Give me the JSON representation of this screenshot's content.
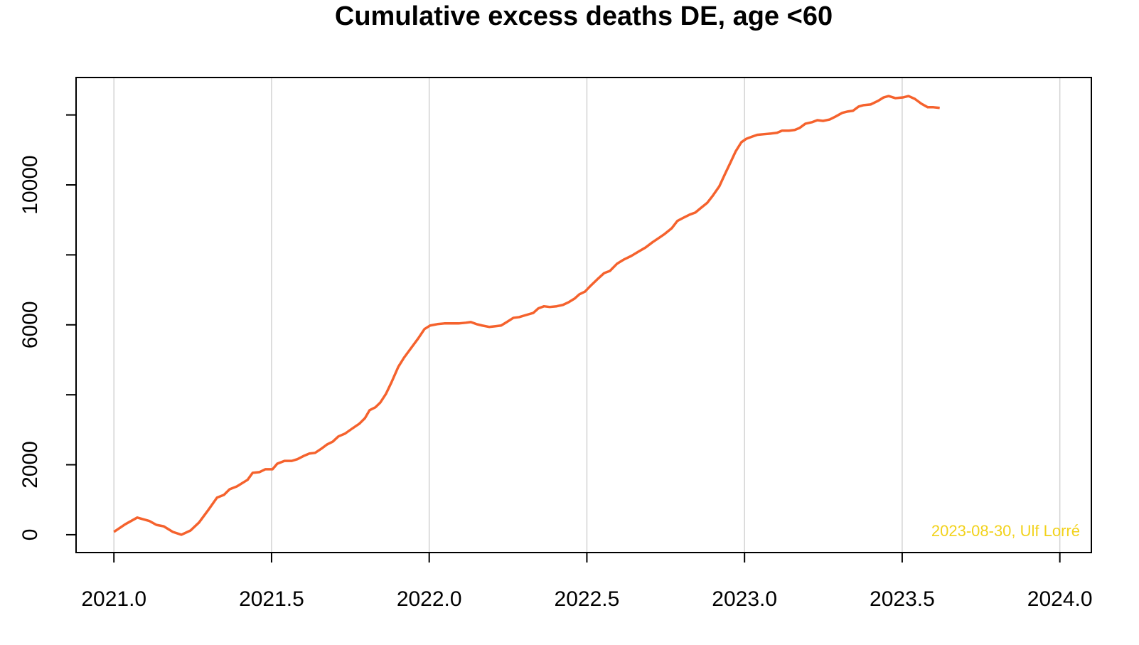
{
  "chart_data": {
    "type": "line",
    "title": "Cumulative excess deaths DE, age <60",
    "annotation": "2023-08-30, Ulf Lorré",
    "annotation_color": "#f2d21b",
    "xlim": [
      2020.88,
      2024.1
    ],
    "xticks": [
      {
        "value": 2021,
        "label": "2021.0"
      },
      {
        "value": 2021.5,
        "label": "2021.5"
      },
      {
        "value": 2022,
        "label": "2022.0"
      },
      {
        "value": 2022.5,
        "label": "2022.5"
      },
      {
        "value": 2023,
        "label": "2023.0"
      },
      {
        "value": 2023.5,
        "label": "2023.5"
      },
      {
        "value": 2024,
        "label": "2024.0"
      }
    ],
    "ylim": [
      -510,
      13070
    ],
    "yticks": [
      0,
      2000,
      4000,
      6000,
      8000,
      10000,
      12000
    ],
    "grid": "x",
    "series": [
      {
        "color": "#f5622d",
        "x": [
          2021.0,
          2021.036,
          2021.074,
          2021.113,
          2021.135,
          2021.158,
          2021.187,
          2021.214,
          2021.243,
          2021.27,
          2021.298,
          2021.327,
          2021.349,
          2021.367,
          2021.39,
          2021.424,
          2021.44,
          2021.462,
          2021.48,
          2021.503,
          2021.518,
          2021.541,
          2021.564,
          2021.582,
          2021.604,
          2021.62,
          2021.638,
          2021.658,
          2021.676,
          2021.694,
          2021.712,
          2021.733,
          2021.755,
          2021.778,
          2021.796,
          2021.811,
          2021.829,
          2021.845,
          2021.863,
          2021.881,
          2021.902,
          2021.92,
          2021.942,
          2021.965,
          2021.985,
          2022.003,
          2022.026,
          2022.048,
          2022.071,
          2022.093,
          2022.116,
          2022.132,
          2022.15,
          2022.168,
          2022.19,
          2022.21,
          2022.228,
          2022.246,
          2022.267,
          2022.285,
          2022.307,
          2022.33,
          2022.346,
          2022.364,
          2022.382,
          2022.404,
          2022.424,
          2022.443,
          2022.461,
          2022.476,
          2022.494,
          2022.51,
          2022.533,
          2022.555,
          2022.573,
          2022.596,
          2022.618,
          2022.641,
          2022.663,
          2022.686,
          2022.708,
          2022.731,
          2022.747,
          2022.769,
          2022.787,
          2022.808,
          2022.826,
          2022.844,
          2022.86,
          2022.882,
          2022.9,
          2022.92,
          2022.938,
          2022.956,
          2022.972,
          2022.99,
          2023.006,
          2023.024,
          2023.04,
          2023.062,
          2023.085,
          2023.103,
          2023.119,
          2023.141,
          2023.159,
          2023.175,
          2023.193,
          2023.213,
          2023.231,
          2023.249,
          2023.27,
          2023.288,
          2023.31,
          2023.328,
          2023.344,
          2023.362,
          2023.378,
          2023.4,
          2023.423,
          2023.441,
          2023.457,
          2023.479,
          2023.502,
          2023.52,
          2023.54,
          2023.561,
          2023.581,
          2023.599,
          2023.619
        ],
        "values": [
          80,
          300,
          490,
          390,
          280,
          240,
          80,
          0,
          120,
          350,
          690,
          1060,
          1140,
          1300,
          1380,
          1570,
          1770,
          1790,
          1870,
          1870,
          2030,
          2110,
          2110,
          2160,
          2260,
          2320,
          2340,
          2460,
          2580,
          2660,
          2810,
          2890,
          3030,
          3170,
          3330,
          3560,
          3640,
          3780,
          4030,
          4370,
          4800,
          5060,
          5330,
          5610,
          5880,
          5980,
          6020,
          6040,
          6040,
          6040,
          6060,
          6080,
          6020,
          5980,
          5940,
          5960,
          5980,
          6080,
          6200,
          6220,
          6280,
          6340,
          6470,
          6530,
          6510,
          6530,
          6570,
          6650,
          6750,
          6870,
          6950,
          7100,
          7300,
          7480,
          7540,
          7750,
          7870,
          7970,
          8090,
          8210,
          8360,
          8500,
          8600,
          8760,
          8970,
          9070,
          9150,
          9210,
          9330,
          9490,
          9700,
          9960,
          10310,
          10650,
          10960,
          11220,
          11320,
          11380,
          11430,
          11450,
          11470,
          11490,
          11550,
          11550,
          11570,
          11630,
          11750,
          11790,
          11850,
          11830,
          11870,
          11950,
          12060,
          12100,
          12120,
          12240,
          12280,
          12300,
          12400,
          12500,
          12540,
          12480,
          12500,
          12540,
          12460,
          12320,
          12220,
          12220,
          12200
        ]
      }
    ]
  }
}
